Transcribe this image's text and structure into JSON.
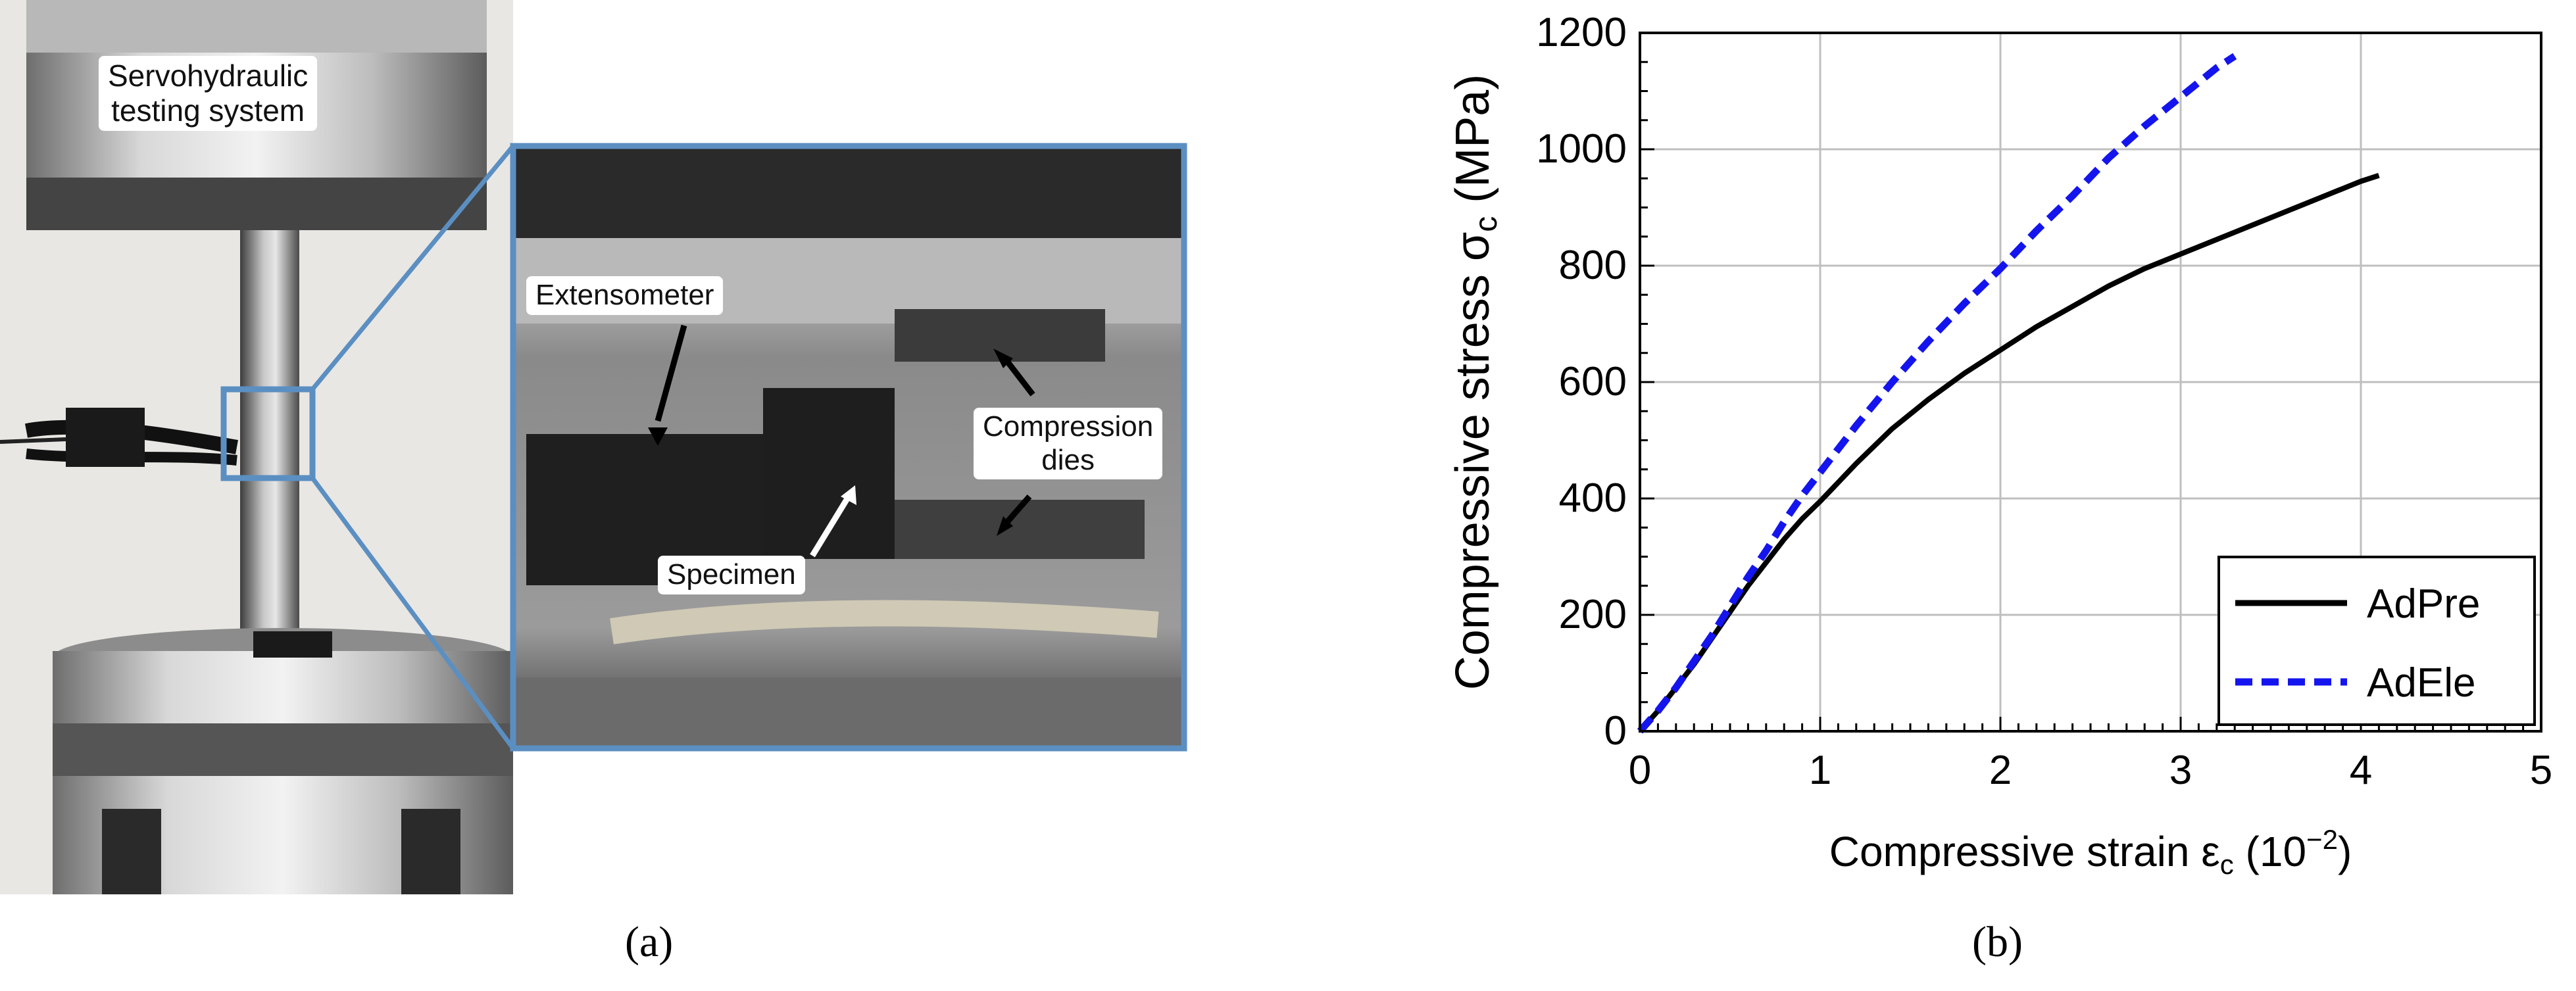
{
  "panel_a": {
    "label": "(a)",
    "callouts": {
      "system": [
        "Servohydraulic",
        "testing system"
      ],
      "extensometer": "Extensometer",
      "dies": [
        "Compression",
        "dies"
      ],
      "specimen": "Specimen"
    }
  },
  "panel_b": {
    "label": "(b)"
  },
  "chart_data": {
    "type": "line",
    "xlabel": "Compressive strain εc (10−2)",
    "xlabel_parts": {
      "main": "Compressive strain ε",
      "sub": "c",
      "unit_open": " (10",
      "sup": "−2",
      "unit_close": ")"
    },
    "ylabel": "Compressive stress σc (MPa)",
    "ylabel_parts": {
      "main": "Compressive stress σ",
      "sub": "c",
      "unit": " (MPa)"
    },
    "xlim": [
      0,
      5
    ],
    "ylim": [
      0,
      1200
    ],
    "xticks": [
      0,
      1,
      2,
      3,
      4,
      5
    ],
    "yticks": [
      0,
      200,
      400,
      600,
      800,
      1000,
      1200
    ],
    "grid": true,
    "legend_position": "bottom-right",
    "series": [
      {
        "name": "AdPre",
        "color": "#000000",
        "dash": "solid",
        "x": [
          0,
          0.1,
          0.2,
          0.3,
          0.4,
          0.5,
          0.6,
          0.7,
          0.8,
          0.9,
          1.0,
          1.2,
          1.4,
          1.6,
          1.8,
          2.0,
          2.2,
          2.4,
          2.6,
          2.8,
          3.0,
          3.2,
          3.4,
          3.6,
          3.8,
          4.0,
          4.1
        ],
        "y": [
          0,
          35,
          75,
          115,
          160,
          205,
          250,
          290,
          330,
          365,
          395,
          460,
          520,
          570,
          615,
          655,
          695,
          730,
          765,
          795,
          820,
          845,
          870,
          895,
          920,
          945,
          955
        ]
      },
      {
        "name": "AdEle",
        "color": "#1414ee",
        "dash": "dashed",
        "x": [
          0,
          0.1,
          0.2,
          0.3,
          0.4,
          0.5,
          0.6,
          0.7,
          0.8,
          0.9,
          1.0,
          1.2,
          1.4,
          1.6,
          1.8,
          2.0,
          2.2,
          2.4,
          2.6,
          2.8,
          3.0,
          3.2,
          3.3
        ],
        "y": [
          0,
          35,
          75,
          120,
          165,
          215,
          265,
          310,
          360,
          405,
          445,
          525,
          600,
          670,
          735,
          795,
          860,
          920,
          985,
          1040,
          1090,
          1140,
          1160
        ]
      }
    ]
  },
  "colors": {
    "frame_blue": "#5b8fc2",
    "grid": "#bfbfbf",
    "metal_light": "#d9d9d9",
    "metal_mid": "#9a9a9a",
    "metal_dark": "#4a4a4a"
  }
}
